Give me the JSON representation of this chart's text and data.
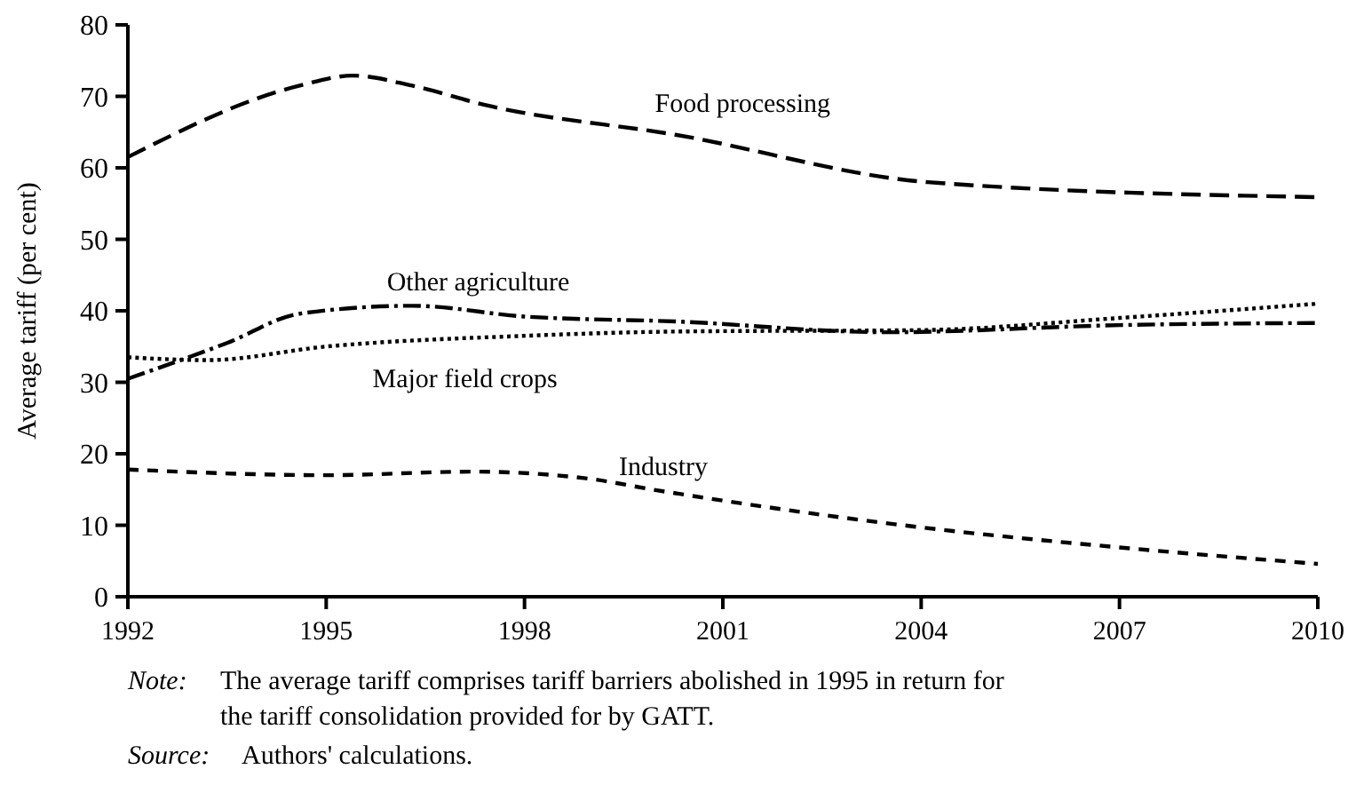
{
  "chart_data": {
    "type": "line",
    "ylabel": "Average tariff (per cent)",
    "xlim": [
      1992,
      2010
    ],
    "xticks": [
      1992,
      1995,
      1998,
      2001,
      2004,
      2007,
      2010
    ],
    "ylim": [
      0,
      80
    ],
    "yticks": [
      0,
      10,
      20,
      30,
      40,
      50,
      60,
      70,
      80
    ],
    "grid": false,
    "legend": false,
    "marker": "none",
    "series": [
      {
        "name": "Food processing",
        "color": "#000000",
        "line_style": "dashed",
        "x": [
          1992,
          1994.6,
          1995.4,
          1996.3,
          1997.4,
          2000.3,
          2004.1,
          2010
        ],
        "values": [
          61.5,
          71.5,
          72.9,
          71.5,
          68.8,
          64.6,
          58.0,
          55.9
        ]
      },
      {
        "name": "Other agriculture",
        "color": "#000000",
        "line_style": "dashdot",
        "x": [
          1992,
          1993.5,
          1994.6,
          1996.3,
          1998,
          2000.3,
          2003.5,
          2007,
          2010
        ],
        "values": [
          30.5,
          35.5,
          39.6,
          40.7,
          39.2,
          38.5,
          37.0,
          38.0,
          38.3
        ]
      },
      {
        "name": "Major field crops",
        "color": "#000000",
        "line_style": "dotted",
        "x": [
          1992,
          1993.2,
          1995,
          1998,
          2000.3,
          2004,
          2007,
          2010
        ],
        "values": [
          33.5,
          33.1,
          35.0,
          36.5,
          37.1,
          37.3,
          39.0,
          41.0
        ]
      },
      {
        "name": "Industry",
        "color": "#000000",
        "line_style": "dashed",
        "x": [
          1992,
          1995,
          1997.2,
          1998.9,
          2000,
          2004,
          2007,
          2010
        ],
        "values": [
          17.8,
          17.0,
          17.5,
          16.6,
          14.9,
          9.7,
          6.9,
          4.6
        ]
      }
    ],
    "annotations": [
      "Note: The average tariff comprises tariff barriers abolished in 1995 in return for the tariff consolidation provided for by GATT.",
      "Source: Authors' calculations."
    ]
  }
}
